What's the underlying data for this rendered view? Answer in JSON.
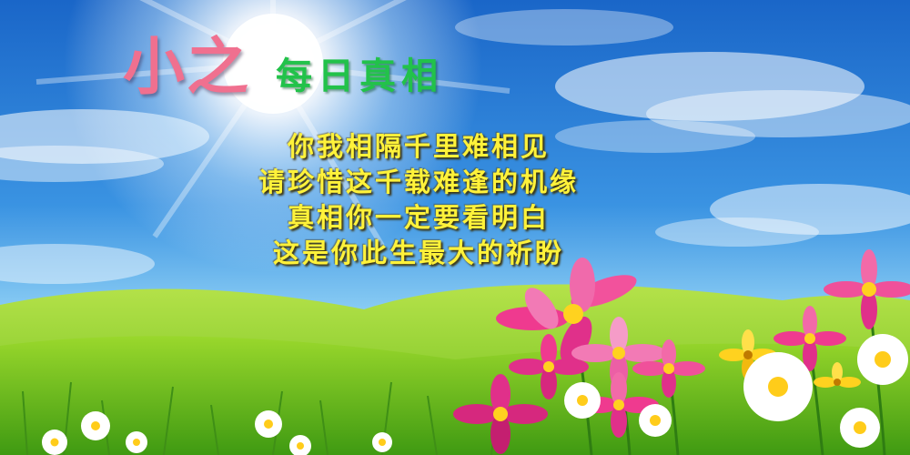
{
  "title": {
    "main": "小之",
    "sub": "每日真相"
  },
  "poem": {
    "lines": [
      "你我相隔千里难相见",
      "请珍惜这千载难逢的机缘",
      "真相你一定要看明白",
      "这是你此生最大的祈盼"
    ]
  },
  "colors": {
    "sky_top": "#1a6fd0",
    "sky_horizon": "#8fd0f5",
    "grass": "#7fcf1a",
    "title_main": "#f0708f",
    "title_sub": "#22c24a",
    "poem_text": "#fff23a"
  },
  "scene": {
    "elements": [
      "sun-glow-icon",
      "cloud-icon",
      "grass-hill-icon",
      "cosmos-flower-icon",
      "daisy-icon"
    ]
  }
}
